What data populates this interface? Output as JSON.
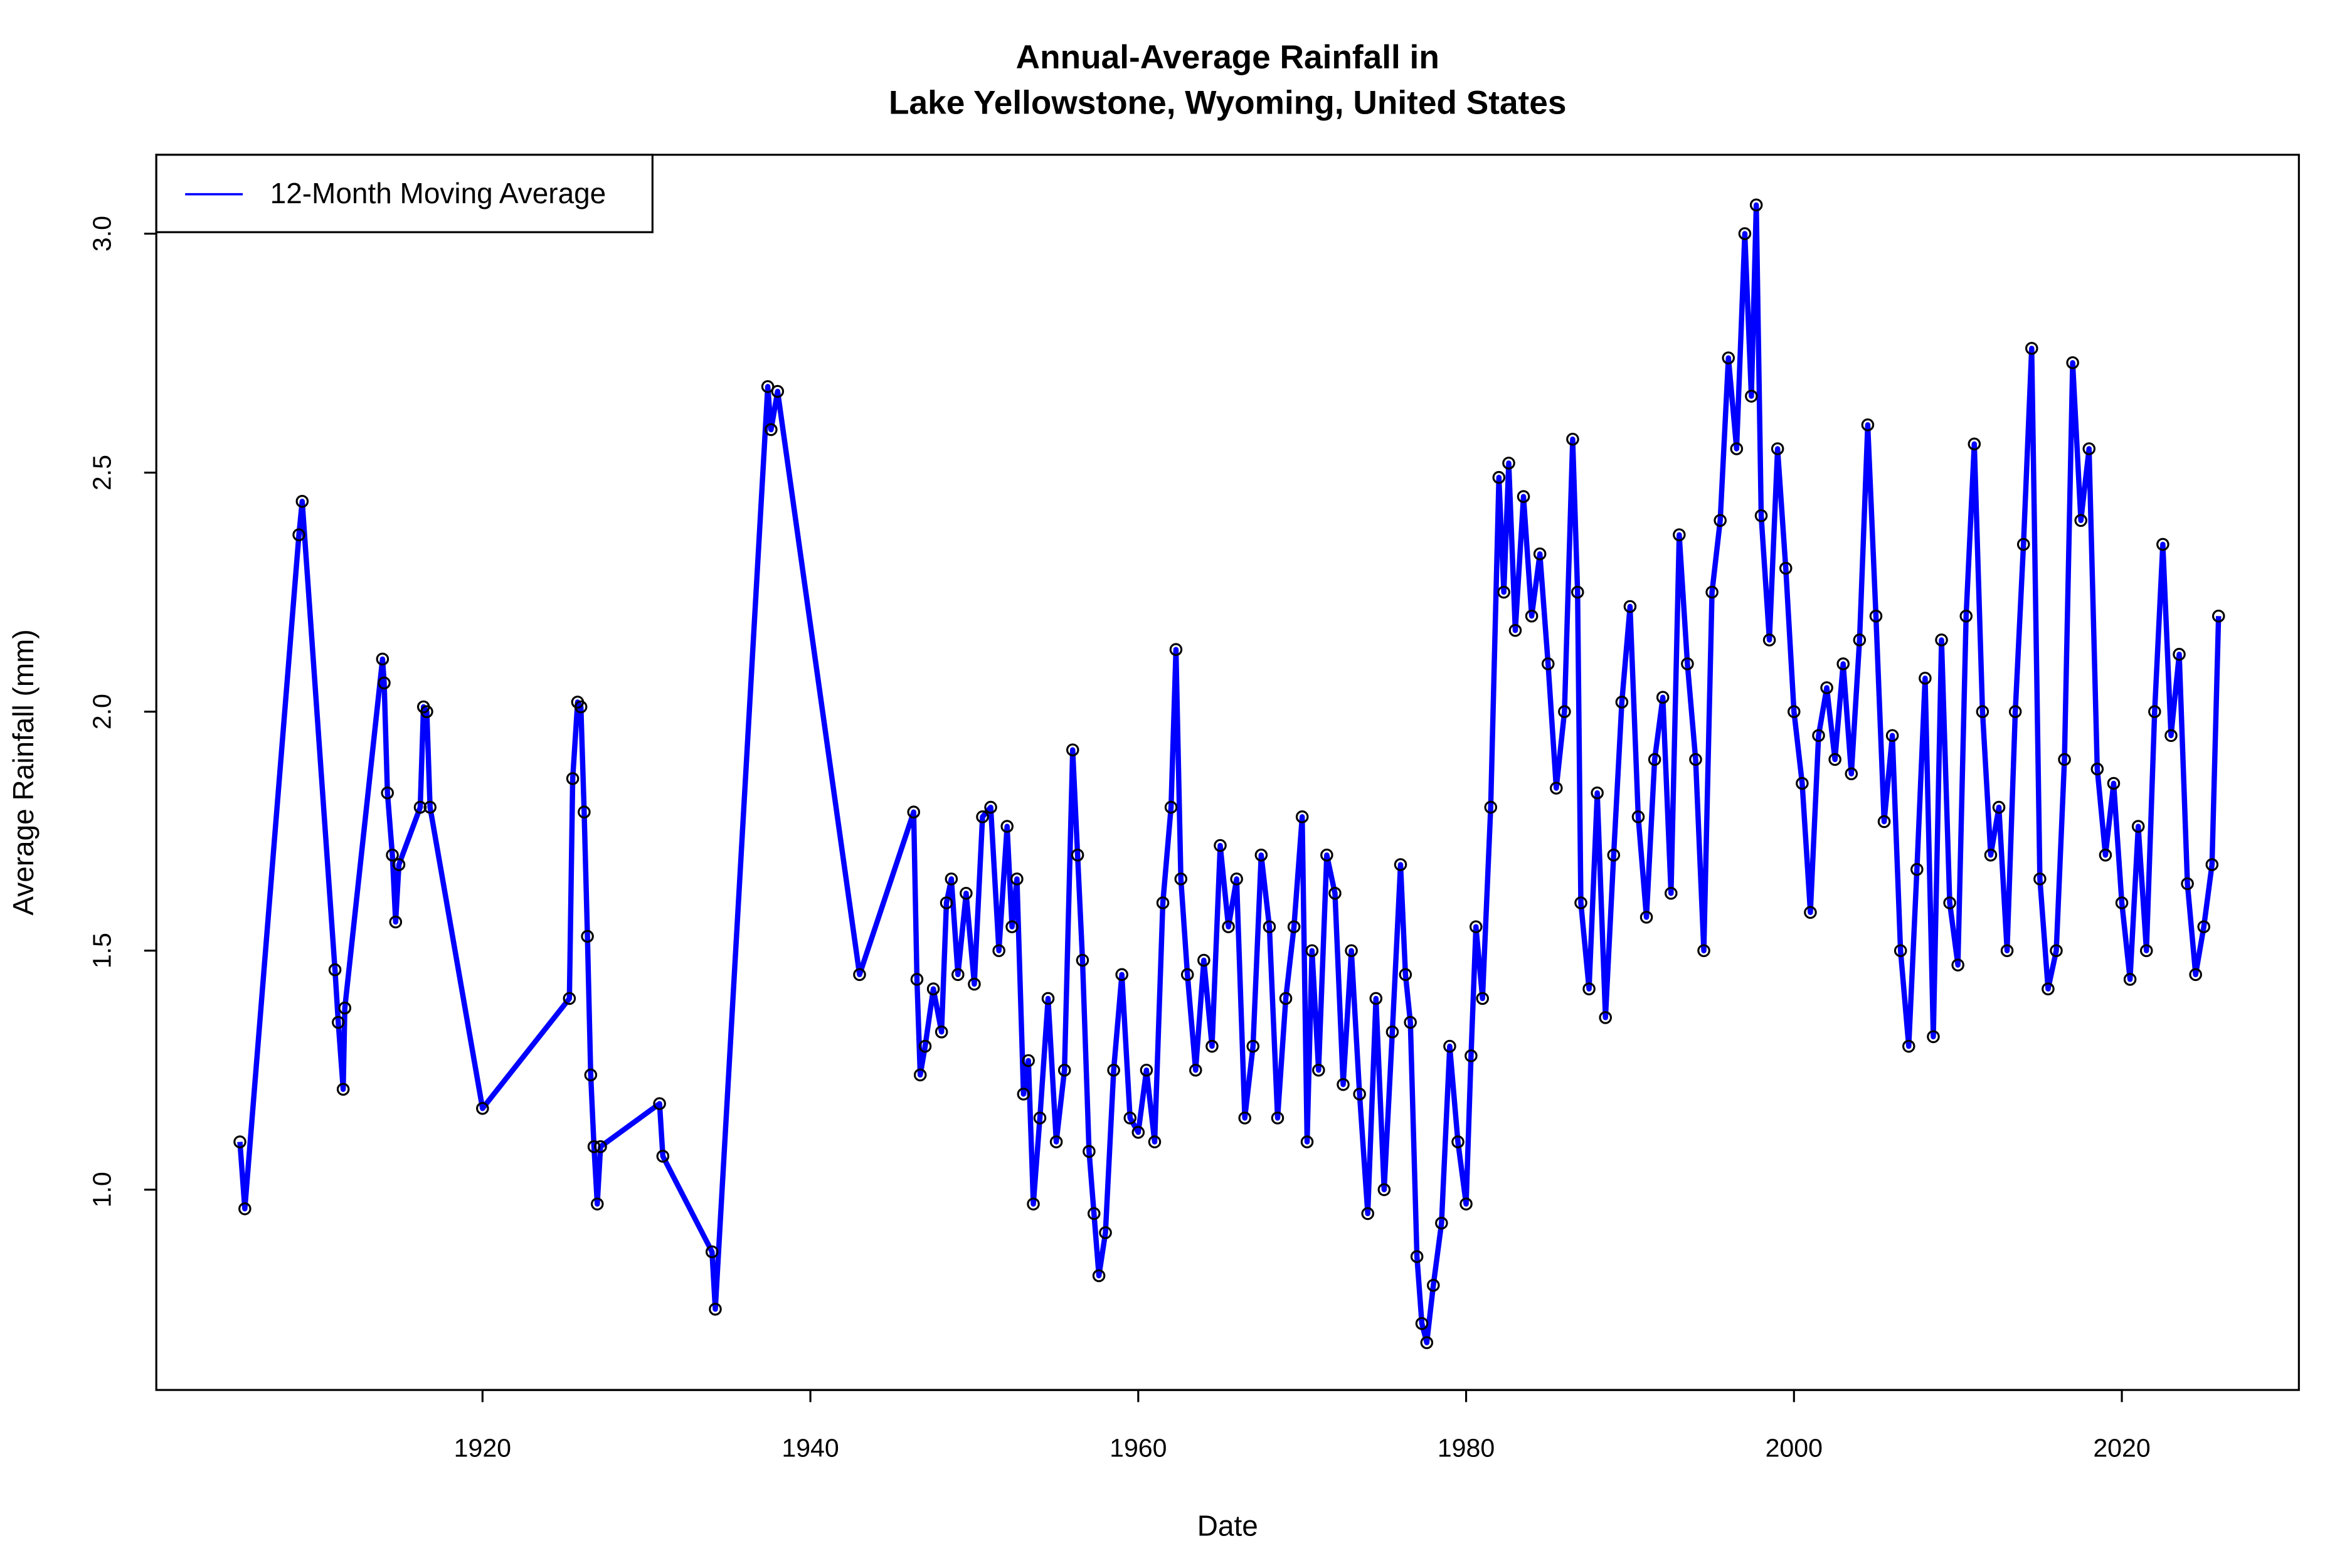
{
  "chart_data": {
    "type": "line",
    "title": [
      "Annual-Average Rainfall in",
      "Lake Yellowstone, Wyoming, United States"
    ],
    "xlabel": "Date",
    "ylabel": "Average Rainfall (mm)",
    "xlim": [
      1900.1,
      2030.8
    ],
    "ylim": [
      0.581,
      3.165
    ],
    "xticks": [
      1920,
      1940,
      1960,
      1980,
      2000,
      2020
    ],
    "yticks": [
      {
        "value": 1.0,
        "label": "1.0"
      },
      {
        "value": 1.5,
        "label": "1.5"
      },
      {
        "value": 2.0,
        "label": "2.0"
      },
      {
        "value": 2.5,
        "label": "2.5"
      },
      {
        "value": 3.0,
        "label": "3.0"
      }
    ],
    "legend": "top-left",
    "x": [
      1905.2,
      1905.5,
      1908.8,
      1909.0,
      1911.0,
      1911.2,
      1911.5,
      1911.6,
      1913.9,
      1914.0,
      1914.2,
      1914.5,
      1914.7,
      1914.9,
      1916.2,
      1916.4,
      1916.6,
      1916.8,
      1920.0,
      1925.3,
      1925.5,
      1925.8,
      1926.0,
      1926.2,
      1926.4,
      1926.6,
      1926.8,
      1927.0,
      1927.2,
      1930.8,
      1931.0,
      1934.0,
      1934.2,
      1937.4,
      1937.6,
      1938.0,
      1943.0,
      1946.3,
      1946.5,
      1946.7,
      1947.0,
      1947.5,
      1948.0,
      1948.3,
      1948.6,
      1949.0,
      1949.5,
      1950.0,
      1950.5,
      1951.0,
      1951.5,
      1952.0,
      1952.3,
      1952.6,
      1953.0,
      1953.3,
      1953.6,
      1954.0,
      1954.5,
      1955.0,
      1955.5,
      1956.0,
      1956.3,
      1956.6,
      1957.0,
      1957.3,
      1957.6,
      1958.0,
      1958.5,
      1959.0,
      1959.5,
      1960.0,
      1960.5,
      1961.0,
      1961.5,
      1962.0,
      1962.3,
      1962.6,
      1963.0,
      1963.5,
      1964.0,
      1964.5,
      1965.0,
      1965.5,
      1966.0,
      1966.5,
      1967.0,
      1967.5,
      1968.0,
      1968.5,
      1969.0,
      1969.5,
      1970.0,
      1970.3,
      1970.6,
      1971.0,
      1971.5,
      1972.0,
      1972.5,
      1973.0,
      1973.5,
      1974.0,
      1974.5,
      1975.0,
      1975.5,
      1976.0,
      1976.3,
      1976.6,
      1977.0,
      1977.3,
      1977.6,
      1978.0,
      1978.5,
      1979.0,
      1979.5,
      1980.0,
      1980.3,
      1980.6,
      1981.0,
      1981.5,
      1982.0,
      1982.3,
      1982.6,
      1983.0,
      1983.5,
      1984.0,
      1984.5,
      1985.0,
      1985.5,
      1986.0,
      1986.5,
      1986.8,
      1987.0,
      1987.5,
      1988.0,
      1988.5,
      1989.0,
      1989.5,
      1990.0,
      1990.5,
      1991.0,
      1991.5,
      1992.0,
      1992.5,
      1993.0,
      1993.5,
      1994.0,
      1994.5,
      1995.0,
      1995.5,
      1996.0,
      1996.5,
      1997.0,
      1997.4,
      1997.7,
      1998.0,
      1998.5,
      1999.0,
      1999.5,
      2000.0,
      2000.5,
      2001.0,
      2001.5,
      2002.0,
      2002.5,
      2003.0,
      2003.5,
      2004.0,
      2004.5,
      2005.0,
      2005.5,
      2006.0,
      2006.5,
      2007.0,
      2007.5,
      2008.0,
      2008.5,
      2009.0,
      2009.5,
      2010.0,
      2010.5,
      2011.0,
      2011.5,
      2012.0,
      2012.5,
      2013.0,
      2013.5,
      2014.0,
      2014.5,
      2015.0,
      2015.5,
      2016.0,
      2016.5,
      2017.0,
      2017.5,
      2018.0,
      2018.5,
      2019.0,
      2019.5,
      2020.0,
      2020.5,
      2021.0,
      2021.5,
      2022.0,
      2022.5,
      2023.0,
      2023.5,
      2024.0,
      2024.5,
      2025.0,
      2025.5,
      2025.9
    ],
    "series": [
      {
        "name": "12-Month Moving Average",
        "color": "#0000ff",
        "marker_color": "#000000",
        "values": [
          1.1,
          0.96,
          2.37,
          2.44,
          1.46,
          1.35,
          1.21,
          1.38,
          2.11,
          2.06,
          1.83,
          1.7,
          1.56,
          1.68,
          1.8,
          2.01,
          2.0,
          1.8,
          1.17,
          1.4,
          1.86,
          2.02,
          2.01,
          1.79,
          1.53,
          1.24,
          1.09,
          0.97,
          1.09,
          1.18,
          1.07,
          0.87,
          0.75,
          2.68,
          2.59,
          2.67,
          1.45,
          1.79,
          1.44,
          1.24,
          1.3,
          1.42,
          1.33,
          1.6,
          1.65,
          1.45,
          1.62,
          1.43,
          1.78,
          1.8,
          1.5,
          1.76,
          1.55,
          1.65,
          1.2,
          1.27,
          0.97,
          1.15,
          1.4,
          1.1,
          1.25,
          1.92,
          1.7,
          1.48,
          1.08,
          0.95,
          0.82,
          0.91,
          1.25,
          1.45,
          1.15,
          1.12,
          1.25,
          1.1,
          1.6,
          1.8,
          2.13,
          1.65,
          1.45,
          1.25,
          1.48,
          1.3,
          1.72,
          1.55,
          1.65,
          1.15,
          1.3,
          1.7,
          1.55,
          1.15,
          1.4,
          1.55,
          1.78,
          1.1,
          1.5,
          1.25,
          1.7,
          1.62,
          1.22,
          1.5,
          1.2,
          0.95,
          1.4,
          1.0,
          1.33,
          1.68,
          1.45,
          1.35,
          0.86,
          0.72,
          0.68,
          0.8,
          0.93,
          1.3,
          1.1,
          0.97,
          1.28,
          1.55,
          1.4,
          1.8,
          2.49,
          2.25,
          2.52,
          2.17,
          2.45,
          2.2,
          2.33,
          2.1,
          1.84,
          2.0,
          2.57,
          2.25,
          1.6,
          1.42,
          1.83,
          1.36,
          1.7,
          2.02,
          2.22,
          1.78,
          1.57,
          1.9,
          2.03,
          1.62,
          2.37,
          2.1,
          1.9,
          1.5,
          2.25,
          2.4,
          2.74,
          2.55,
          3.0,
          2.66,
          3.06,
          2.41,
          2.15,
          2.55,
          2.3,
          2.0,
          1.85,
          1.58,
          1.95,
          2.05,
          1.9,
          2.1,
          1.87,
          2.15,
          2.6,
          2.2,
          1.77,
          1.95,
          1.5,
          1.3,
          1.67,
          2.07,
          1.32,
          2.15,
          1.6,
          1.47,
          2.2,
          2.56,
          2.0,
          1.7,
          1.8,
          1.5,
          2.0,
          2.35,
          2.76,
          1.65,
          1.42,
          1.5,
          1.9,
          2.73,
          2.4,
          2.55,
          1.88,
          1.7,
          1.85,
          1.6,
          1.44,
          1.76,
          1.5,
          2.0,
          2.35,
          1.95,
          2.12,
          1.64,
          1.45,
          1.55,
          1.68,
          2.2
        ]
      }
    ]
  }
}
